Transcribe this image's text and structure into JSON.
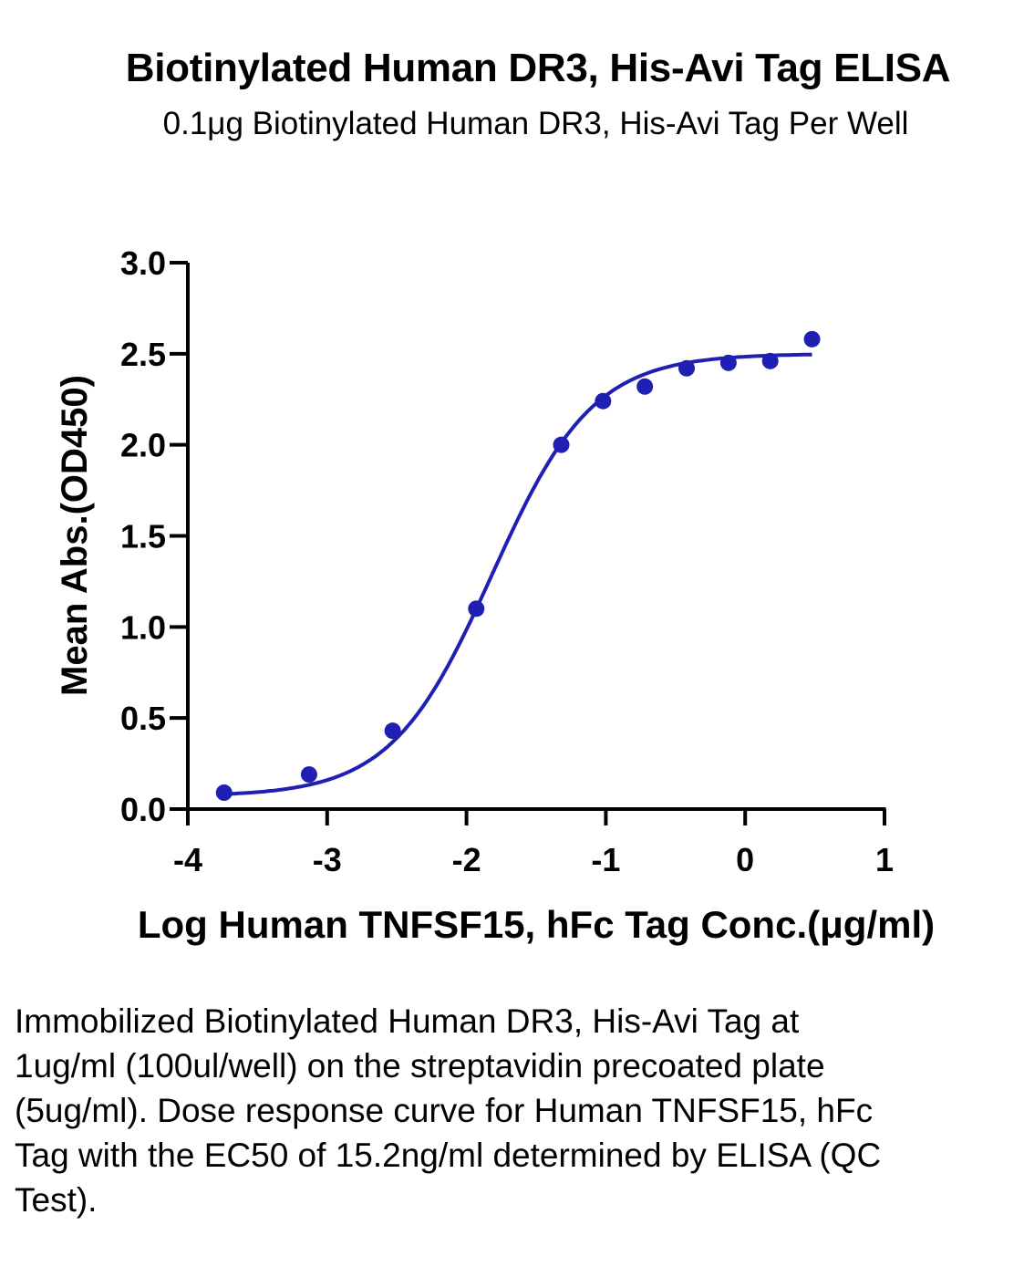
{
  "chart_data": {
    "type": "scatter",
    "title": "Biotinylated Human DR3, His-Avi Tag ELISA",
    "subtitle": "0.1μg Biotinylated Human DR3, His-Avi Tag Per Well",
    "xlabel": "Log Human TNFSF15, hFc Tag Conc.(μg/ml)",
    "ylabel": "Mean Abs.(OD450)",
    "xlim": [
      -4,
      1
    ],
    "ylim": [
      0,
      3.0
    ],
    "xticks": [
      "-4",
      "-3",
      "-2",
      "-1",
      "0",
      "1"
    ],
    "yticks": [
      "0.0",
      "0.5",
      "1.0",
      "1.5",
      "2.0",
      "2.5",
      "3.0"
    ],
    "grid": false,
    "colors": {
      "series": "#1f1fb4"
    },
    "series": [
      {
        "x": [
          -3.74,
          -3.13,
          -2.53,
          -1.93,
          -1.32,
          -1.02,
          -0.72,
          -0.42,
          -0.12,
          0.18,
          0.48
        ],
        "values": [
          0.09,
          0.19,
          0.43,
          1.1,
          2.0,
          2.24,
          2.32,
          2.42,
          2.45,
          2.46,
          2.58
        ],
        "fit": {
          "model": "4PL",
          "bottom": 0.07,
          "top": 2.5,
          "log_ec50": -1.818,
          "hill": 1.2
        }
      }
    ]
  },
  "caption": "Immobilized Biotinylated Human DR3, His-Avi Tag at 1ug/ml (100ul/well) on the streptavidin precoated plate (5ug/ml). Dose response curve for Human TNFSF15, hFc Tag with the EC50 of 15.2ng/ml determined by ELISA (QC Test)."
}
